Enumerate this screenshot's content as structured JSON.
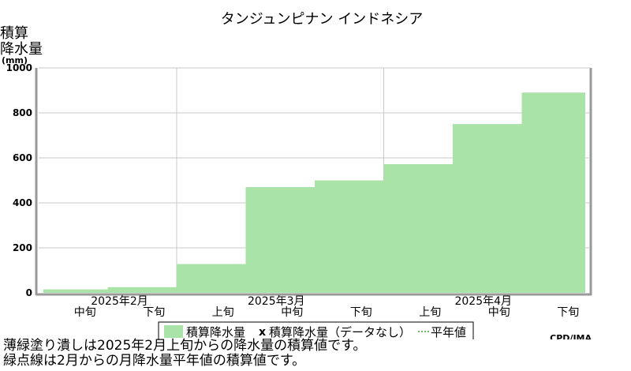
{
  "chart_data": {
    "type": "area",
    "title": "タンジュンピナン インドネシア",
    "ylabel_lines": [
      "積算",
      "降水量",
      "(mm)"
    ],
    "ylim": [
      0,
      1000
    ],
    "yticks": [
      0,
      200,
      400,
      600,
      800,
      1000
    ],
    "months": [
      "2025年2月",
      "2025年3月",
      "2025年4月"
    ],
    "periods": [
      "中旬",
      "下旬",
      "上旬",
      "中旬",
      "下旬",
      "上旬",
      "中旬",
      "下旬"
    ],
    "values": [
      15,
      25,
      128,
      470,
      500,
      572,
      750,
      890
    ],
    "fill_color": "#aae3a8",
    "normal_color": "#33aa33",
    "legend": {
      "accumulated": "積算降水量",
      "missing_marker": "x",
      "missing": "積算降水量（データなし）",
      "normal": "平年値"
    },
    "credit": "CPD/JMA",
    "notes": [
      "薄緑塗り潰しは2025年2月上旬からの降水量の積算値です。",
      "緑点線は2月からの月降水量平年値の積算値です。"
    ]
  }
}
